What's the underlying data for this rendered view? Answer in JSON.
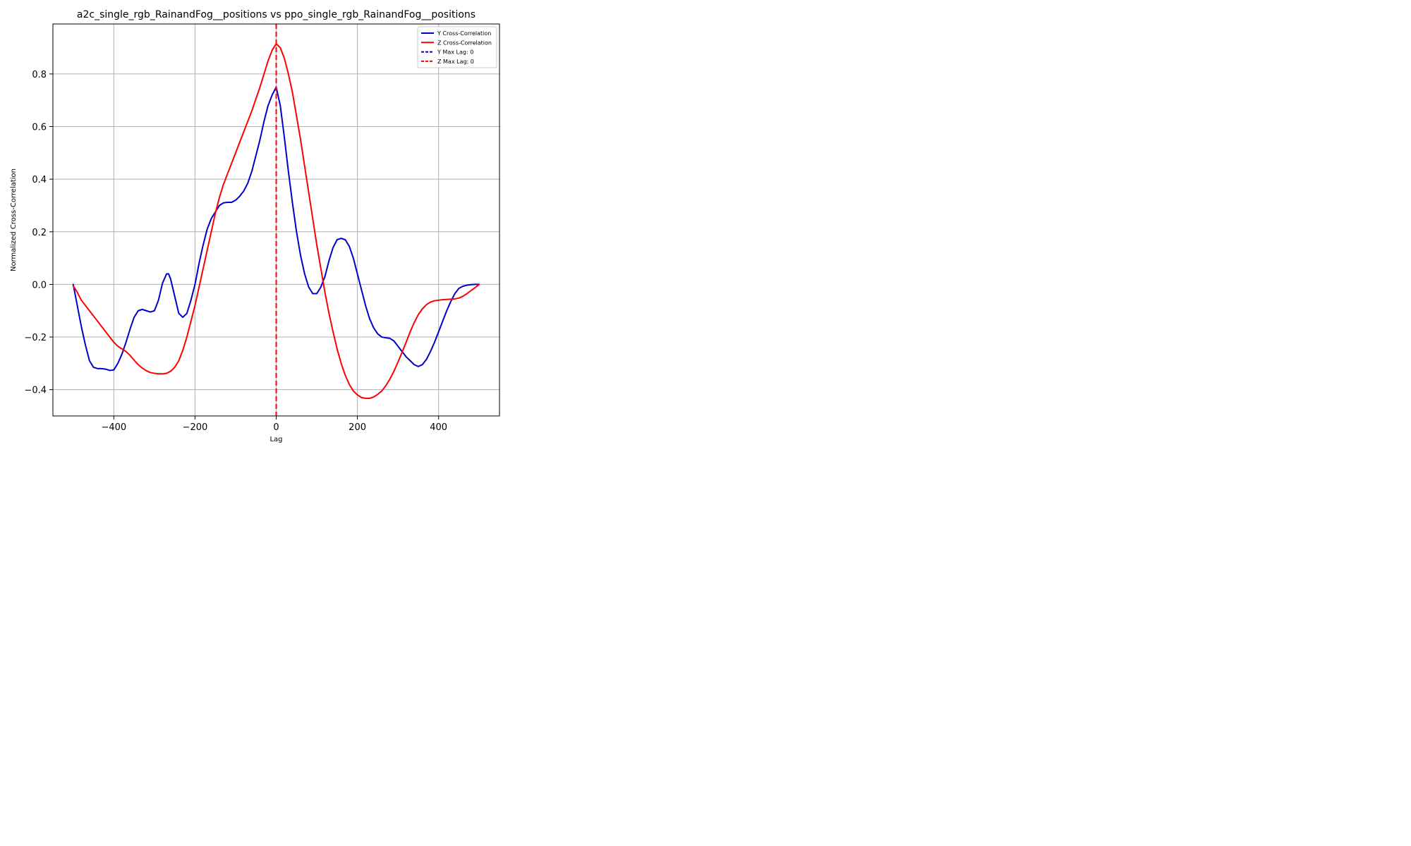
{
  "chart_data": {
    "type": "line",
    "title": "a2c_single_rgb_RainandFog__positions vs ppo_single_rgb_RainandFog__positions",
    "xlabel": "Lag",
    "ylabel": "Normalized Cross-Correlation",
    "xlim": [
      -550,
      550
    ],
    "ylim": [
      -0.5,
      0.99
    ],
    "xticks": [
      -400,
      -200,
      0,
      200,
      400
    ],
    "xtick_labels": [
      "−400",
      "−200",
      "0",
      "200",
      "400"
    ],
    "yticks": [
      -0.4,
      -0.2,
      0.0,
      0.2,
      0.4,
      0.6,
      0.8
    ],
    "ytick_labels": [
      "−0.4",
      "−0.2",
      "0.0",
      "0.2",
      "0.4",
      "0.6",
      "0.8"
    ],
    "grid": true,
    "legend_position": "top-right",
    "series": [
      {
        "name": "Y Cross-Correlation",
        "color": "#0000cc",
        "style": "solid",
        "points": [
          [
            -500,
            0.0
          ],
          [
            -490,
            -0.08
          ],
          [
            -480,
            -0.16
          ],
          [
            -470,
            -0.23
          ],
          [
            -460,
            -0.29
          ],
          [
            -450,
            -0.315
          ],
          [
            -440,
            -0.32
          ],
          [
            -430,
            -0.32
          ],
          [
            -420,
            -0.322
          ],
          [
            -410,
            -0.327
          ],
          [
            -400,
            -0.325
          ],
          [
            -390,
            -0.3
          ],
          [
            -380,
            -0.265
          ],
          [
            -370,
            -0.22
          ],
          [
            -360,
            -0.17
          ],
          [
            -350,
            -0.125
          ],
          [
            -340,
            -0.1
          ],
          [
            -330,
            -0.095
          ],
          [
            -320,
            -0.1
          ],
          [
            -310,
            -0.105
          ],
          [
            -300,
            -0.1
          ],
          [
            -290,
            -0.06
          ],
          [
            -280,
            0.005
          ],
          [
            -270,
            0.04
          ],
          [
            -265,
            0.04
          ],
          [
            -260,
            0.02
          ],
          [
            -250,
            -0.045
          ],
          [
            -240,
            -0.11
          ],
          [
            -230,
            -0.125
          ],
          [
            -220,
            -0.11
          ],
          [
            -210,
            -0.06
          ],
          [
            -200,
            0.0
          ],
          [
            -190,
            0.08
          ],
          [
            -180,
            0.15
          ],
          [
            -170,
            0.21
          ],
          [
            -160,
            0.25
          ],
          [
            -150,
            0.275
          ],
          [
            -140,
            0.3
          ],
          [
            -130,
            0.31
          ],
          [
            -120,
            0.312
          ],
          [
            -110,
            0.312
          ],
          [
            -100,
            0.32
          ],
          [
            -90,
            0.335
          ],
          [
            -80,
            0.355
          ],
          [
            -70,
            0.385
          ],
          [
            -60,
            0.43
          ],
          [
            -50,
            0.49
          ],
          [
            -40,
            0.55
          ],
          [
            -30,
            0.62
          ],
          [
            -20,
            0.68
          ],
          [
            -10,
            0.72
          ],
          [
            0,
            0.75
          ],
          [
            10,
            0.68
          ],
          [
            20,
            0.56
          ],
          [
            30,
            0.43
          ],
          [
            40,
            0.31
          ],
          [
            50,
            0.2
          ],
          [
            60,
            0.11
          ],
          [
            70,
            0.04
          ],
          [
            80,
            -0.01
          ],
          [
            90,
            -0.035
          ],
          [
            100,
            -0.035
          ],
          [
            110,
            -0.01
          ],
          [
            120,
            0.03
          ],
          [
            130,
            0.09
          ],
          [
            140,
            0.14
          ],
          [
            150,
            0.17
          ],
          [
            160,
            0.175
          ],
          [
            170,
            0.17
          ],
          [
            180,
            0.145
          ],
          [
            190,
            0.1
          ],
          [
            200,
            0.04
          ],
          [
            210,
            -0.02
          ],
          [
            220,
            -0.08
          ],
          [
            230,
            -0.13
          ],
          [
            240,
            -0.165
          ],
          [
            250,
            -0.188
          ],
          [
            260,
            -0.2
          ],
          [
            270,
            -0.203
          ],
          [
            280,
            -0.205
          ],
          [
            290,
            -0.215
          ],
          [
            300,
            -0.235
          ],
          [
            310,
            -0.255
          ],
          [
            320,
            -0.275
          ],
          [
            330,
            -0.29
          ],
          [
            340,
            -0.305
          ],
          [
            350,
            -0.312
          ],
          [
            360,
            -0.305
          ],
          [
            370,
            -0.285
          ],
          [
            380,
            -0.255
          ],
          [
            390,
            -0.22
          ],
          [
            400,
            -0.18
          ],
          [
            410,
            -0.14
          ],
          [
            420,
            -0.1
          ],
          [
            430,
            -0.065
          ],
          [
            440,
            -0.035
          ],
          [
            450,
            -0.015
          ],
          [
            460,
            -0.007
          ],
          [
            470,
            -0.003
          ],
          [
            480,
            -0.001
          ],
          [
            490,
            0.0
          ],
          [
            500,
            0.0
          ]
        ]
      },
      {
        "name": "Z Cross-Correlation",
        "color": "#ff0000",
        "style": "solid",
        "points": [
          [
            -500,
            -0.005
          ],
          [
            -490,
            -0.03
          ],
          [
            -480,
            -0.06
          ],
          [
            -460,
            -0.1
          ],
          [
            -440,
            -0.14
          ],
          [
            -420,
            -0.18
          ],
          [
            -400,
            -0.22
          ],
          [
            -390,
            -0.235
          ],
          [
            -380,
            -0.245
          ],
          [
            -370,
            -0.255
          ],
          [
            -360,
            -0.27
          ],
          [
            -350,
            -0.288
          ],
          [
            -340,
            -0.305
          ],
          [
            -330,
            -0.318
          ],
          [
            -320,
            -0.328
          ],
          [
            -310,
            -0.335
          ],
          [
            -300,
            -0.338
          ],
          [
            -290,
            -0.34
          ],
          [
            -280,
            -0.34
          ],
          [
            -270,
            -0.338
          ],
          [
            -260,
            -0.33
          ],
          [
            -250,
            -0.315
          ],
          [
            -240,
            -0.29
          ],
          [
            -230,
            -0.25
          ],
          [
            -220,
            -0.2
          ],
          [
            -210,
            -0.14
          ],
          [
            -200,
            -0.08
          ],
          [
            -190,
            -0.01
          ],
          [
            -180,
            0.06
          ],
          [
            -170,
            0.13
          ],
          [
            -160,
            0.2
          ],
          [
            -150,
            0.27
          ],
          [
            -140,
            0.33
          ],
          [
            -130,
            0.38
          ],
          [
            -120,
            0.42
          ],
          [
            -110,
            0.46
          ],
          [
            -100,
            0.5
          ],
          [
            -90,
            0.54
          ],
          [
            -80,
            0.58
          ],
          [
            -70,
            0.62
          ],
          [
            -60,
            0.66
          ],
          [
            -50,
            0.705
          ],
          [
            -40,
            0.75
          ],
          [
            -30,
            0.8
          ],
          [
            -20,
            0.85
          ],
          [
            -10,
            0.89
          ],
          [
            0,
            0.915
          ],
          [
            10,
            0.9
          ],
          [
            20,
            0.86
          ],
          [
            30,
            0.8
          ],
          [
            40,
            0.73
          ],
          [
            50,
            0.64
          ],
          [
            60,
            0.55
          ],
          [
            70,
            0.45
          ],
          [
            80,
            0.35
          ],
          [
            90,
            0.25
          ],
          [
            100,
            0.15
          ],
          [
            110,
            0.06
          ],
          [
            120,
            -0.03
          ],
          [
            130,
            -0.11
          ],
          [
            140,
            -0.18
          ],
          [
            150,
            -0.245
          ],
          [
            160,
            -0.3
          ],
          [
            170,
            -0.345
          ],
          [
            180,
            -0.38
          ],
          [
            190,
            -0.405
          ],
          [
            200,
            -0.42
          ],
          [
            210,
            -0.43
          ],
          [
            220,
            -0.433
          ],
          [
            230,
            -0.433
          ],
          [
            240,
            -0.428
          ],
          [
            250,
            -0.418
          ],
          [
            260,
            -0.405
          ],
          [
            270,
            -0.385
          ],
          [
            280,
            -0.36
          ],
          [
            290,
            -0.33
          ],
          [
            300,
            -0.295
          ],
          [
            310,
            -0.258
          ],
          [
            320,
            -0.22
          ],
          [
            330,
            -0.18
          ],
          [
            340,
            -0.145
          ],
          [
            350,
            -0.115
          ],
          [
            360,
            -0.093
          ],
          [
            370,
            -0.077
          ],
          [
            380,
            -0.067
          ],
          [
            390,
            -0.062
          ],
          [
            400,
            -0.06
          ],
          [
            410,
            -0.058
          ],
          [
            420,
            -0.057
          ],
          [
            430,
            -0.056
          ],
          [
            440,
            -0.055
          ],
          [
            450,
            -0.052
          ],
          [
            460,
            -0.045
          ],
          [
            470,
            -0.035
          ],
          [
            480,
            -0.023
          ],
          [
            490,
            -0.012
          ],
          [
            500,
            0.0
          ]
        ]
      }
    ],
    "vlines": [
      {
        "name": "Y Max Lag: 0",
        "x": 0,
        "color": "#0000cc",
        "style": "dashed"
      },
      {
        "name": "Z Max Lag: 0",
        "x": 0,
        "color": "#ff0000",
        "style": "dashed"
      }
    ]
  }
}
